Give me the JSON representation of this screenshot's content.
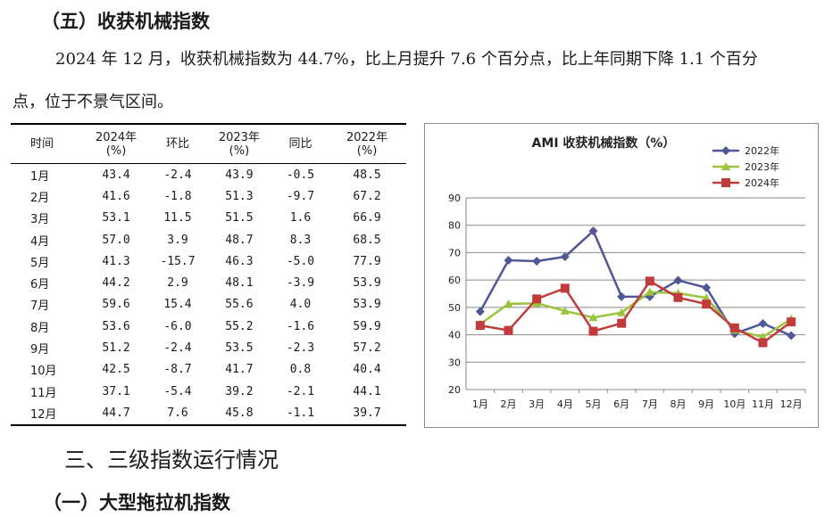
{
  "section_heading": "（五）收获机械指数",
  "paragraph_line1": "2024 年 12 月，收获机械指数为 44.7%，比上月提升 7.6 个百分点，比上年同期下降 1.1 个百分",
  "paragraph_line2": "点，位于不景气区间。",
  "table": {
    "headers": [
      "时间",
      "2024年\n(%)",
      "环比",
      "2023年\n(%)",
      "同比",
      "2022年\n(%)"
    ],
    "rows": [
      [
        "1月",
        "43.4",
        "-2.4",
        "43.9",
        "-0.5",
        "48.5"
      ],
      [
        "2月",
        "41.6",
        "-1.8",
        "51.3",
        "-9.7",
        "67.2"
      ],
      [
        "3月",
        "53.1",
        "11.5",
        "51.5",
        "1.6",
        "66.9"
      ],
      [
        "4月",
        "57.0",
        "3.9",
        "48.7",
        "8.3",
        "68.5"
      ],
      [
        "5月",
        "41.3",
        "-15.7",
        "46.3",
        "-5.0",
        "77.9"
      ],
      [
        "6月",
        "44.2",
        "2.9",
        "48.1",
        "-3.9",
        "53.9"
      ],
      [
        "7月",
        "59.6",
        "15.4",
        "55.6",
        "4.0",
        "53.9"
      ],
      [
        "8月",
        "53.6",
        "-6.0",
        "55.2",
        "-1.6",
        "59.9"
      ],
      [
        "9月",
        "51.2",
        "-2.4",
        "53.5",
        "-2.3",
        "57.2"
      ],
      [
        "10月",
        "42.5",
        "-8.7",
        "41.7",
        "0.8",
        "40.4"
      ],
      [
        "11月",
        "37.1",
        "-5.4",
        "39.2",
        "-2.1",
        "44.1"
      ],
      [
        "12月",
        "44.7",
        "7.6",
        "45.8",
        "-1.1",
        "39.7"
      ]
    ]
  },
  "chart_data": {
    "type": "line",
    "title": "AMI 收获机械指数（%）",
    "categories": [
      "1月",
      "2月",
      "3月",
      "4月",
      "5月",
      "6月",
      "7月",
      "8月",
      "9月",
      "10月",
      "11月",
      "12月"
    ],
    "series": [
      {
        "name": "2022年",
        "color": "#4f5796",
        "marker": "diamond",
        "values": [
          48.5,
          67.2,
          66.9,
          68.5,
          77.9,
          53.9,
          53.9,
          59.9,
          57.2,
          40.4,
          44.1,
          39.7
        ]
      },
      {
        "name": "2023年",
        "color": "#99c43c",
        "marker": "triangle",
        "values": [
          43.9,
          51.3,
          51.5,
          48.7,
          46.3,
          48.1,
          55.6,
          55.2,
          53.5,
          41.7,
          39.2,
          45.8
        ]
      },
      {
        "name": "2024年",
        "color": "#c23b3b",
        "marker": "square",
        "values": [
          43.4,
          41.6,
          53.1,
          57.0,
          41.3,
          44.2,
          59.6,
          53.6,
          51.2,
          42.5,
          37.1,
          44.7
        ]
      }
    ],
    "yticks": [
      "20",
      "30",
      "40",
      "50",
      "60",
      "70",
      "80",
      "90"
    ],
    "ylim": [
      20,
      90
    ],
    "grid": true,
    "legend": "top-right"
  },
  "section3_heading": "三、三级指数运行情况",
  "section3_1_heading": "（一）大型拖拉机指数"
}
